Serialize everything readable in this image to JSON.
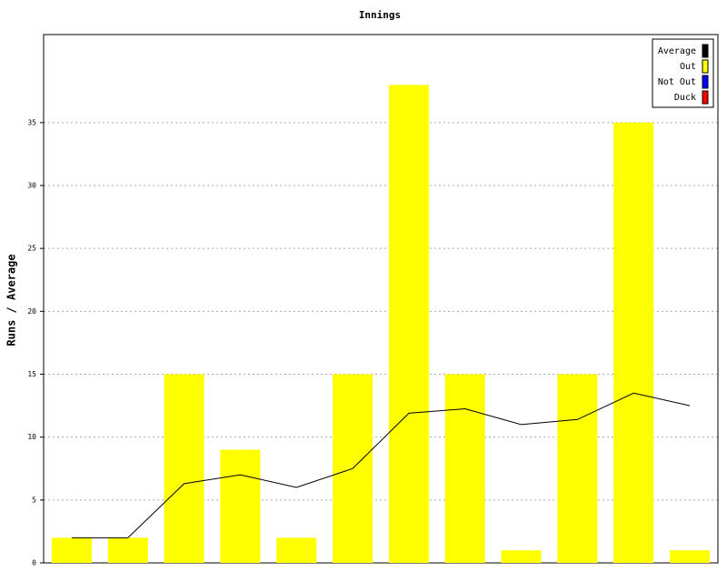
{
  "chart_data": {
    "type": "bar",
    "title": "Innings",
    "y_label": "Runs / Average",
    "categories": [
      null,
      null,
      null,
      null,
      null,
      null,
      null,
      null,
      null,
      null,
      null,
      null
    ],
    "series": [
      {
        "name": "Average",
        "type": "line",
        "color": "#000000",
        "values": [
          2,
          2,
          6.3,
          7,
          6,
          7.5,
          11.9,
          12.25,
          11,
          11.4,
          13.5,
          12.5
        ]
      },
      {
        "name": "Out",
        "color": "#ffff00",
        "values": [
          2,
          2,
          15,
          9,
          2,
          15,
          38,
          15,
          1,
          15,
          35,
          1
        ]
      },
      {
        "name": "Not Out",
        "color": "#0000ff",
        "values": [
          0,
          0,
          0,
          0,
          0,
          0,
          0,
          0,
          0,
          0,
          0,
          0
        ]
      },
      {
        "name": "Duck",
        "color": "#ff0000",
        "values": [
          0,
          0,
          0,
          0,
          0,
          0,
          0,
          0,
          0,
          0,
          0,
          0
        ]
      }
    ],
    "ylim": [
      0,
      42
    ],
    "yticks": [
      0,
      5,
      10,
      15,
      20,
      25,
      30,
      35
    ],
    "grid": true,
    "legend": "top-right"
  }
}
